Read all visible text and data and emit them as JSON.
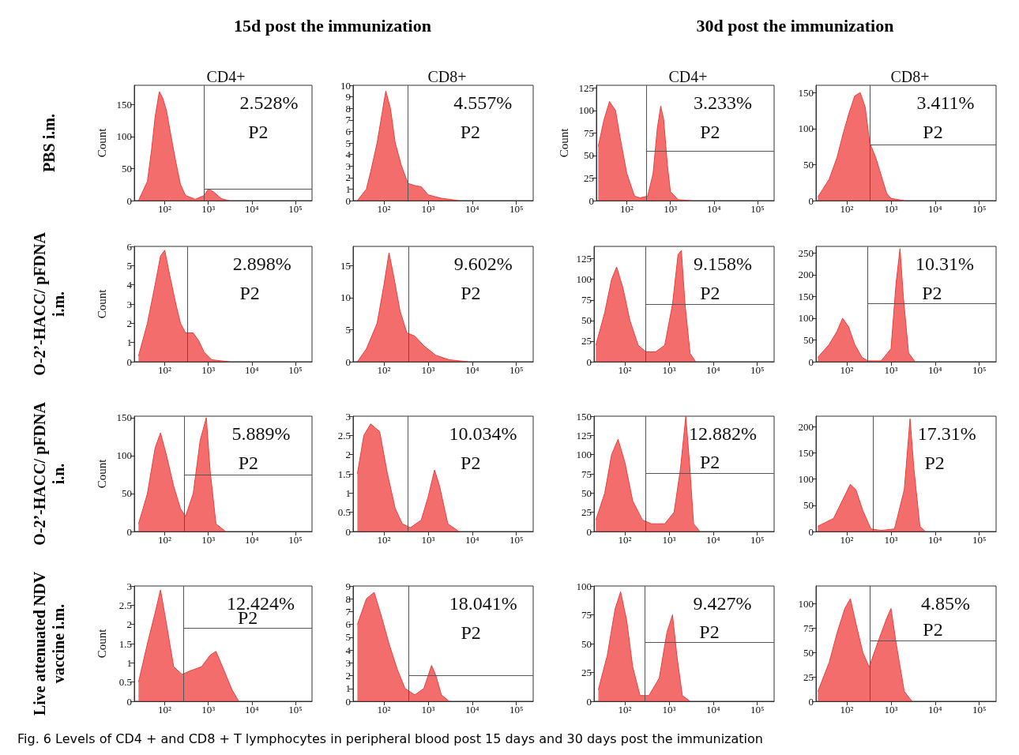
{
  "chart_data": [
    {
      "type": "area",
      "title": "CD4+",
      "ylabel": "Count",
      "color": "#f03c3c",
      "log": "x",
      "xlim": [
        20,
        240000
      ],
      "xticks": [
        {
          "value": 100,
          "label": "10²"
        },
        {
          "value": 1000,
          "label": "10³"
        },
        {
          "value": 10000,
          "label": "10⁴"
        },
        {
          "value": 100000,
          "label": "10⁵"
        }
      ],
      "ylim": [
        0,
        180
      ],
      "yticks": [
        0,
        50,
        100,
        150
      ],
      "x": [
        25,
        40,
        50,
        60,
        75,
        90,
        110,
        140,
        180,
        230,
        300,
        500,
        800,
        1000,
        1300,
        2000,
        3000
      ],
      "values": [
        0,
        30,
        80,
        130,
        170,
        160,
        140,
        100,
        60,
        25,
        8,
        2,
        8,
        18,
        14,
        3,
        0
      ],
      "ref_lines": [
        {
          "axis": "x",
          "value": 810
        },
        {
          "axis": "y",
          "value": 18
        }
      ],
      "annotations": [
        "2.528%",
        "P2",
        "15d post the immunization",
        "PBS i.m."
      ]
    },
    {
      "type": "area",
      "title": "CD8+",
      "color": "#f03c3c",
      "log": "x",
      "xlim": [
        20,
        240000
      ],
      "xticks": [
        {
          "value": 100,
          "label": "10²"
        },
        {
          "value": 1000,
          "label": "10³"
        },
        {
          "value": 10000,
          "label": "10⁴"
        },
        {
          "value": 100000,
          "label": "10⁵"
        }
      ],
      "ylim": [
        0,
        10
      ],
      "yticks": [
        0,
        1,
        2,
        3,
        4,
        5,
        6,
        7,
        8,
        9,
        10
      ],
      "x": [
        25,
        40,
        50,
        70,
        90,
        110,
        140,
        180,
        250,
        350,
        500,
        700,
        1000,
        2000,
        5000
      ],
      "values": [
        0,
        1,
        2.5,
        5,
        7.5,
        9.5,
        8,
        5,
        3,
        1.5,
        1.3,
        1.2,
        0.5,
        0.2,
        0
      ],
      "ref_lines": [
        {
          "axis": "x",
          "value": 340
        }
      ],
      "annotations": [
        "4.557%",
        "P2"
      ]
    },
    {
      "type": "area",
      "title": "CD4+",
      "ylabel": "Count",
      "color": "#f03c3c",
      "log": "x",
      "xlim": [
        20,
        240000
      ],
      "xticks": [
        {
          "value": 100,
          "label": "10²"
        },
        {
          "value": 1000,
          "label": "10³"
        },
        {
          "value": 10000,
          "label": "10⁴"
        },
        {
          "value": 100000,
          "label": "10⁵"
        }
      ],
      "ylim": [
        0,
        128
      ],
      "yticks": [
        0,
        25,
        50,
        75,
        100,
        125
      ],
      "x": [
        22,
        30,
        40,
        55,
        70,
        100,
        150,
        200,
        300,
        400,
        500,
        600,
        700,
        850,
        1000,
        1500,
        3000
      ],
      "values": [
        60,
        90,
        110,
        100,
        70,
        30,
        5,
        3,
        5,
        30,
        80,
        105,
        90,
        40,
        10,
        1,
        0
      ],
      "ref_lines": [
        {
          "axis": "x",
          "value": 275
        },
        {
          "axis": "y",
          "value": 55
        }
      ],
      "annotations": [
        "3.233%",
        "P2",
        "30d post the immunization"
      ]
    },
    {
      "type": "area",
      "title": "CD8+",
      "color": "#f03c3c",
      "log": "x",
      "xlim": [
        20,
        240000
      ],
      "xticks": [
        {
          "value": 100,
          "label": "10²"
        },
        {
          "value": 1000,
          "label": "10³"
        },
        {
          "value": 10000,
          "label": "10⁴"
        },
        {
          "value": 100000,
          "label": "10⁵"
        }
      ],
      "ylim": [
        0,
        160
      ],
      "yticks": [
        0,
        50,
        100,
        150
      ],
      "x": [
        22,
        40,
        60,
        80,
        110,
        150,
        200,
        260,
        330,
        450,
        600,
        800,
        1000,
        2000
      ],
      "values": [
        5,
        30,
        60,
        90,
        120,
        145,
        150,
        130,
        80,
        60,
        35,
        10,
        3,
        0
      ],
      "ref_lines": [
        {
          "axis": "x",
          "value": 330
        },
        {
          "axis": "y",
          "value": 78
        }
      ],
      "annotations": [
        "3.411%",
        "P2"
      ]
    },
    {
      "type": "area",
      "ylabel": "Count",
      "color": "#f03c3c",
      "log": "x",
      "xlim": [
        20,
        240000
      ],
      "xticks": [
        {
          "value": 100,
          "label": "10²"
        },
        {
          "value": 1000,
          "label": "10³"
        },
        {
          "value": 10000,
          "label": "10⁴"
        },
        {
          "value": 100000,
          "label": "10⁵"
        }
      ],
      "ylim": [
        0,
        6
      ],
      "yticks": [
        0,
        1,
        2,
        3,
        4,
        5,
        6
      ],
      "x": [
        25,
        40,
        60,
        80,
        100,
        130,
        180,
        230,
        300,
        450,
        600,
        800,
        1200,
        3000
      ],
      "values": [
        0.3,
        2,
        4,
        5.5,
        5.8,
        4.5,
        3,
        2,
        1.5,
        1.5,
        1.1,
        0.5,
        0.1,
        0
      ],
      "ref_lines": [
        {
          "axis": "x",
          "value": 330
        }
      ],
      "annotations": [
        "2.898%",
        "P2",
        "O-2’-HACC/ pFDNA i.m."
      ]
    },
    {
      "type": "area",
      "color": "#f03c3c",
      "log": "x",
      "xlim": [
        20,
        240000
      ],
      "xticks": [
        {
          "value": 100,
          "label": "10²"
        },
        {
          "value": 1000,
          "label": "10³"
        },
        {
          "value": 10000,
          "label": "10⁴"
        },
        {
          "value": 100000,
          "label": "10⁵"
        }
      ],
      "ylim": [
        0,
        18
      ],
      "yticks": [
        0,
        5,
        10,
        15
      ],
      "x": [
        25,
        40,
        70,
        100,
        130,
        170,
        230,
        330,
        500,
        800,
        1500,
        3000,
        8000
      ],
      "values": [
        0,
        2,
        6,
        12,
        17,
        13,
        8,
        4.5,
        4,
        2.5,
        1,
        0.3,
        0
      ],
      "ref_lines": [
        {
          "axis": "x",
          "value": 355
        }
      ],
      "annotations": [
        "9.602%",
        "P2"
      ]
    },
    {
      "type": "area",
      "color": "#f03c3c",
      "log": "x",
      "xlim": [
        20,
        240000
      ],
      "xticks": [
        {
          "value": 100,
          "label": "10²"
        },
        {
          "value": 1000,
          "label": "10³"
        },
        {
          "value": 10000,
          "label": "10⁴"
        },
        {
          "value": 100000,
          "label": "10⁵"
        }
      ],
      "ylim": [
        0,
        140
      ],
      "yticks": [
        0,
        25,
        50,
        75,
        100,
        125
      ],
      "x": [
        22,
        35,
        50,
        65,
        90,
        130,
        200,
        300,
        500,
        800,
        1200,
        1600,
        1900,
        2300,
        3000,
        4000
      ],
      "values": [
        20,
        60,
        100,
        115,
        90,
        50,
        20,
        12,
        12,
        20,
        70,
        130,
        135,
        70,
        10,
        0
      ],
      "ref_lines": [
        {
          "axis": "x",
          "value": 300
        },
        {
          "axis": "y",
          "value": 70
        }
      ],
      "annotations": [
        "9.158%",
        "P2"
      ]
    },
    {
      "type": "area",
      "color": "#f03c3c",
      "log": "x",
      "xlim": [
        20,
        240000
      ],
      "xticks": [
        {
          "value": 100,
          "label": "10²"
        },
        {
          "value": 1000,
          "label": "10³"
        },
        {
          "value": 10000,
          "label": "10⁴"
        },
        {
          "value": 100000,
          "label": "10⁵"
        }
      ],
      "ylim": [
        0,
        265
      ],
      "yticks": [
        0,
        50,
        100,
        150,
        200,
        250
      ],
      "x": [
        22,
        40,
        60,
        80,
        110,
        150,
        220,
        300,
        600,
        1000,
        1300,
        1600,
        1900,
        2500,
        3500
      ],
      "values": [
        10,
        40,
        70,
        100,
        80,
        40,
        10,
        2,
        2,
        30,
        180,
        260,
        150,
        20,
        0
      ],
      "ref_lines": [
        {
          "axis": "x",
          "value": 300
        },
        {
          "axis": "y",
          "value": 133
        }
      ],
      "annotations": [
        "10.31%",
        "P2"
      ]
    },
    {
      "type": "area",
      "ylabel": "Count",
      "color": "#f03c3c",
      "log": "x",
      "xlim": [
        20,
        240000
      ],
      "xticks": [
        {
          "value": 100,
          "label": "10²"
        },
        {
          "value": 1000,
          "label": "10³"
        },
        {
          "value": 10000,
          "label": "10⁴"
        },
        {
          "value": 100000,
          "label": "10⁵"
        }
      ],
      "ylim": [
        0,
        152
      ],
      "yticks": [
        0,
        50,
        100,
        150
      ],
      "x": [
        25,
        40,
        60,
        80,
        110,
        160,
        230,
        300,
        450,
        650,
        900,
        1100,
        1500,
        2500
      ],
      "values": [
        10,
        50,
        110,
        130,
        100,
        60,
        30,
        20,
        50,
        120,
        150,
        80,
        10,
        0
      ],
      "ref_lines": [
        {
          "axis": "x",
          "value": 285
        },
        {
          "axis": "y",
          "value": 75
        }
      ],
      "annotations": [
        "5.889%",
        "P2",
        "O-2’-HACC/ pFDNA i.n."
      ]
    },
    {
      "type": "area",
      "color": "#f03c3c",
      "log": "x",
      "xlim": [
        20,
        240000
      ],
      "xticks": [
        {
          "value": 100,
          "label": "10²"
        },
        {
          "value": 1000,
          "label": "10³"
        },
        {
          "value": 10000,
          "label": "10⁴"
        },
        {
          "value": 100000,
          "label": "10⁵"
        }
      ],
      "ylim": [
        0,
        3
      ],
      "yticks": [
        0,
        0.5,
        1,
        1.5,
        2,
        2.5,
        3
      ],
      "x": [
        25,
        35,
        50,
        80,
        120,
        180,
        260,
        400,
        700,
        1000,
        1400,
        1800,
        2800,
        5000
      ],
      "values": [
        1.5,
        2.5,
        2.8,
        2.6,
        1.5,
        0.6,
        0.2,
        0.1,
        0.3,
        0.9,
        1.6,
        1.2,
        0.2,
        0
      ],
      "ref_lines": [
        {
          "axis": "x",
          "value": 350
        }
      ],
      "annotations": [
        "10.034%",
        "P2"
      ]
    },
    {
      "type": "area",
      "color": "#f03c3c",
      "log": "x",
      "xlim": [
        20,
        240000
      ],
      "xticks": [
        {
          "value": 100,
          "label": "10²"
        },
        {
          "value": 1000,
          "label": "10³"
        },
        {
          "value": 10000,
          "label": "10⁴"
        },
        {
          "value": 100000,
          "label": "10⁵"
        }
      ],
      "ylim": [
        0,
        150
      ],
      "yticks": [
        0,
        25,
        50,
        75,
        100,
        125,
        150
      ],
      "x": [
        22,
        35,
        50,
        70,
        100,
        150,
        250,
        400,
        800,
        1300,
        1800,
        2400,
        2900,
        3600,
        5000
      ],
      "values": [
        15,
        50,
        100,
        120,
        90,
        40,
        15,
        10,
        10,
        25,
        80,
        150,
        90,
        10,
        0
      ],
      "ref_lines": [
        {
          "axis": "x",
          "value": 295
        },
        {
          "axis": "y",
          "value": 76
        }
      ],
      "annotations": [
        "12.882%",
        "P2"
      ]
    },
    {
      "type": "area",
      "color": "#f03c3c",
      "log": "x",
      "xlim": [
        20,
        240000
      ],
      "xticks": [
        {
          "value": 100,
          "label": "10²"
        },
        {
          "value": 1000,
          "label": "10³"
        },
        {
          "value": 10000,
          "label": "10⁴"
        },
        {
          "value": 100000,
          "label": "10⁵"
        }
      ],
      "ylim": [
        0,
        220
      ],
      "yticks": [
        0,
        50,
        100,
        150,
        200
      ],
      "x": [
        22,
        50,
        80,
        120,
        160,
        230,
        350,
        600,
        1200,
        2000,
        2700,
        3300,
        4500,
        6000
      ],
      "values": [
        10,
        25,
        60,
        90,
        80,
        40,
        5,
        2,
        5,
        80,
        215,
        120,
        10,
        0
      ],
      "ref_lines": [
        {
          "axis": "x",
          "value": 390
        }
      ],
      "annotations": [
        "17.31%",
        "P2"
      ]
    },
    {
      "type": "area",
      "ylabel": "Count",
      "color": "#f03c3c",
      "log": "x",
      "xlim": [
        20,
        240000
      ],
      "xticks": [
        {
          "value": 100,
          "label": "10²"
        },
        {
          "value": 1000,
          "label": "10³"
        },
        {
          "value": 10000,
          "label": "10⁴"
        },
        {
          "value": 100000,
          "label": "10⁵"
        }
      ],
      "ylim": [
        0,
        3
      ],
      "yticks": [
        0,
        0.5,
        1,
        1.5,
        2,
        2.5,
        3
      ],
      "x": [
        25,
        40,
        60,
        80,
        110,
        160,
        250,
        400,
        700,
        1100,
        1500,
        2300,
        3500,
        5000
      ],
      "values": [
        0.5,
        1.5,
        2.3,
        2.9,
        2,
        0.9,
        0.7,
        0.8,
        0.9,
        1.2,
        1.3,
        0.8,
        0.3,
        0
      ],
      "ref_lines": [
        {
          "axis": "x",
          "value": 270
        },
        {
          "axis": "y",
          "value": 1.9
        }
      ],
      "annotations": [
        "12.424%",
        "P2",
        "Live attenuated NDV vaccine i.m."
      ]
    },
    {
      "type": "area",
      "color": "#f03c3c",
      "log": "x",
      "xlim": [
        20,
        240000
      ],
      "xticks": [
        {
          "value": 100,
          "label": "10²"
        },
        {
          "value": 1000,
          "label": "10³"
        },
        {
          "value": 10000,
          "label": "10⁴"
        },
        {
          "value": 100000,
          "label": "10⁵"
        }
      ],
      "ylim": [
        0,
        9
      ],
      "yticks": [
        0,
        1,
        2,
        3,
        4,
        5,
        6,
        7,
        8,
        9
      ],
      "x": [
        25,
        40,
        60,
        90,
        130,
        200,
        300,
        500,
        800,
        1200,
        1500,
        2000,
        3000
      ],
      "values": [
        6,
        8,
        8.5,
        6.5,
        4.5,
        2.5,
        1,
        0.5,
        1,
        2.8,
        2,
        0.5,
        0
      ],
      "ref_lines": [
        {
          "axis": "x",
          "value": 360
        },
        {
          "axis": "y",
          "value": 2
        }
      ],
      "annotations": [
        "18.041%",
        "P2"
      ]
    },
    {
      "type": "area",
      "color": "#f03c3c",
      "log": "x",
      "xlim": [
        20,
        240000
      ],
      "xticks": [
        {
          "value": 100,
          "label": "10²"
        },
        {
          "value": 1000,
          "label": "10³"
        },
        {
          "value": 10000,
          "label": "10⁴"
        },
        {
          "value": 100000,
          "label": "10⁵"
        }
      ],
      "ylim": [
        0,
        100
      ],
      "yticks": [
        0,
        25,
        50,
        75,
        100
      ],
      "x": [
        25,
        40,
        60,
        80,
        110,
        150,
        220,
        350,
        600,
        900,
        1200,
        1500,
        2000,
        3000
      ],
      "values": [
        10,
        40,
        80,
        95,
        70,
        30,
        5,
        5,
        20,
        60,
        75,
        40,
        5,
        0
      ],
      "ref_lines": [
        {
          "axis": "x",
          "value": 280
        },
        {
          "axis": "y",
          "value": 51
        }
      ],
      "annotations": [
        "9.427%",
        "P2"
      ]
    },
    {
      "type": "area",
      "color": "#f03c3c",
      "log": "x",
      "xlim": [
        20,
        240000
      ],
      "xticks": [
        {
          "value": 100,
          "label": "10²"
        },
        {
          "value": 1000,
          "label": "10³"
        },
        {
          "value": 10000,
          "label": "10⁴"
        },
        {
          "value": 100000,
          "label": "10⁵"
        }
      ],
      "ylim": [
        0,
        118
      ],
      "yticks": [
        0,
        25,
        50,
        75,
        100
      ],
      "x": [
        22,
        40,
        60,
        90,
        120,
        160,
        230,
        320,
        500,
        800,
        1000,
        1300,
        2000,
        3000
      ],
      "values": [
        10,
        40,
        70,
        95,
        105,
        80,
        50,
        35,
        60,
        85,
        95,
        60,
        10,
        0
      ],
      "ref_lines": [
        {
          "axis": "x",
          "value": 330
        },
        {
          "axis": "y",
          "value": 62
        }
      ],
      "annotations": [
        "4.85%",
        "P2",
        "Fig. 6 Levels of CD4 + and CD8 + T lymphocytes in peripheral blood post 15 days and 30 days post the immunization"
      ]
    }
  ]
}
